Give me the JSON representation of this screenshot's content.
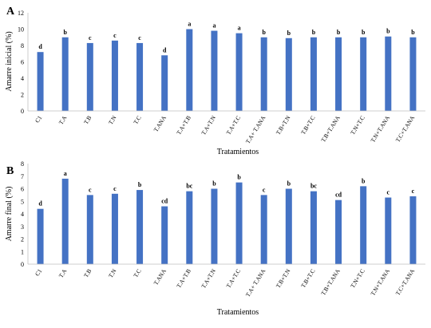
{
  "chart_data": [
    {
      "type": "bar",
      "panel": "A",
      "ylabel": "Amarre inicial (%)",
      "xlabel": "Tratamientos",
      "ylim": [
        0,
        12
      ],
      "yticks": [
        0,
        2,
        4,
        6,
        8,
        10,
        12
      ],
      "grid": false,
      "bar_color": "#4472C4",
      "categories": [
        "C1",
        "T.A",
        "T.B",
        "T.N",
        "T.C",
        "T.ANA",
        "T.A+T.B",
        "T.A+T.N",
        "T.A+T.C",
        "T.A+ T.ANA",
        "T.B+T.N",
        "T.B+T.C",
        "T.B+T.ANA",
        "T.N+T.C",
        "T.N+T.ANA",
        "T.C+T.ANA"
      ],
      "values": [
        7.2,
        9.0,
        8.3,
        8.6,
        8.3,
        6.8,
        10.0,
        9.8,
        9.5,
        9.0,
        8.9,
        9.0,
        9.0,
        9.0,
        9.1,
        9.0
      ],
      "labels": [
        "d",
        "b",
        "c",
        "c",
        "c",
        "d",
        "a",
        "a",
        "a",
        "b",
        "b",
        "b",
        "b",
        "b",
        "b",
        "b"
      ]
    },
    {
      "type": "bar",
      "panel": "B",
      "ylabel": "Amarre final (%)",
      "xlabel": "Tratamientos",
      "ylim": [
        0,
        8
      ],
      "yticks": [
        0,
        1,
        2,
        3,
        4,
        5,
        6,
        7,
        8
      ],
      "grid": false,
      "bar_color": "#4472C4",
      "categories": [
        "C1",
        "T.A",
        "T.B",
        "T.N",
        "T.C",
        "T.ANA",
        "T.A+T.B",
        "T.A+T.N",
        "T.A+T.C",
        "T.A+ T.ANA",
        "T.B+T.N",
        "T.B+T.C",
        "T.B+T.ANA",
        "T.N+T.C",
        "T.N+T.ANA",
        "T.C+T.ANA"
      ],
      "values": [
        4.4,
        6.8,
        5.5,
        5.6,
        5.9,
        4.6,
        5.8,
        6.0,
        6.5,
        5.5,
        6.0,
        5.8,
        5.1,
        6.2,
        5.3,
        5.4
      ],
      "labels": [
        "d",
        "a",
        "c",
        "c",
        "b",
        "cd",
        "bc",
        "b",
        "b",
        "c",
        "b",
        "bc",
        "cd",
        "b",
        "c",
        "c"
      ]
    }
  ]
}
